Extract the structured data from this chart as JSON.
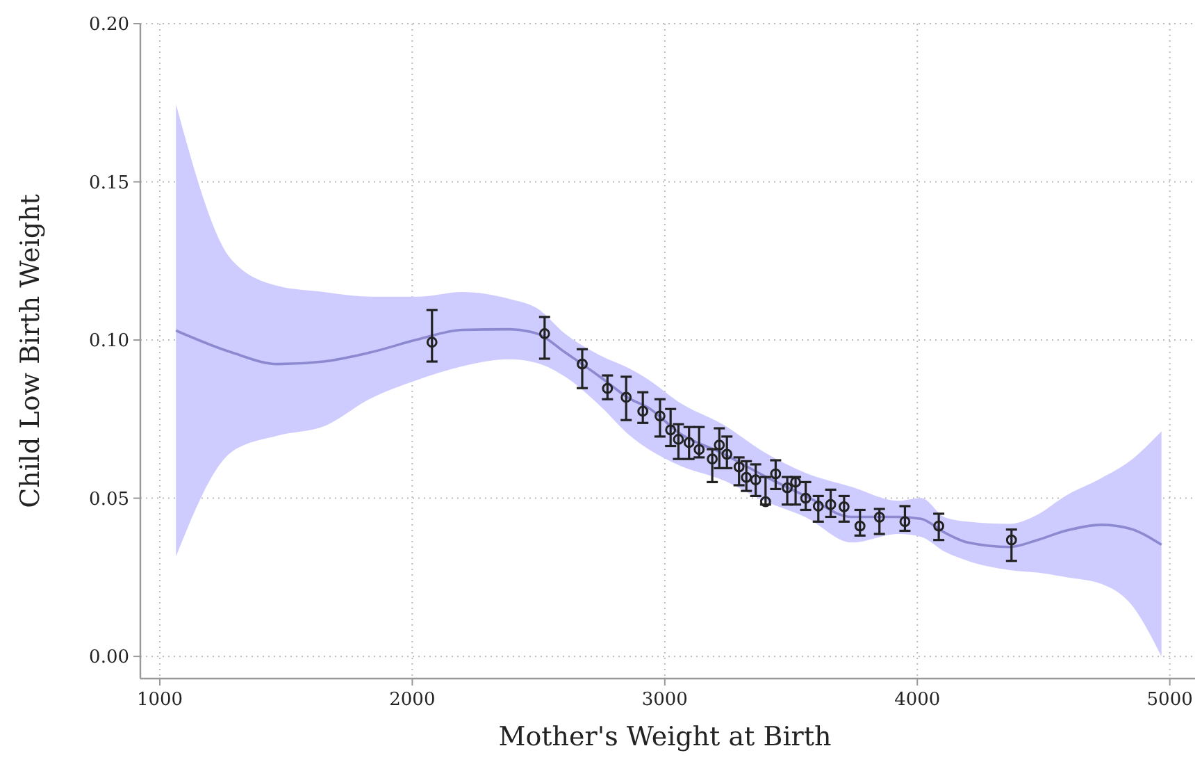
{
  "chart_data": {
    "type": "scatter",
    "xlabel": "Mother's Weight at Birth",
    "ylabel": "Child Low Birth Weight",
    "xlim": [
      923,
      5100
    ],
    "ylim": [
      -0.007,
      0.2
    ],
    "xticks": [
      1000,
      2000,
      3000,
      4000,
      5000
    ],
    "yticks": [
      {
        "value": 0,
        "label": "0.00"
      },
      {
        "value": 0.05,
        "label": "0.05"
      },
      {
        "value": 0.1,
        "label": "0.10"
      },
      {
        "value": 0.15,
        "label": "0.15"
      },
      {
        "value": 0.2,
        "label": "0.20"
      }
    ],
    "grid": true,
    "series": [
      {
        "type": "line",
        "color": "#8c89d0",
        "marker": "none",
        "line_style": "solid",
        "x": [
          1064,
          1284,
          1468,
          1649,
          1835,
          2018,
          2199,
          2385,
          2495,
          2605,
          2750,
          2860,
          2935,
          3063,
          3228,
          3393,
          3558,
          3740,
          3925,
          4015,
          4109,
          4200,
          4366,
          4476,
          4586,
          4730,
          4841,
          4967
        ],
        "values": [
          0.103,
          0.0961,
          0.0924,
          0.0932,
          0.0961,
          0.1001,
          0.1032,
          0.1034,
          0.102,
          0.0961,
          0.088,
          0.0815,
          0.0786,
          0.0703,
          0.0642,
          0.0571,
          0.0507,
          0.0441,
          0.0441,
          0.0435,
          0.0391,
          0.036,
          0.0346,
          0.0368,
          0.0397,
          0.0416,
          0.0404,
          0.0353
        ],
        "upper": [
          0.1745,
          0.1254,
          0.1171,
          0.1152,
          0.1137,
          0.1137,
          0.1152,
          0.113,
          0.11,
          0.102,
          0.0949,
          0.091,
          0.0875,
          0.08,
          0.0734,
          0.0646,
          0.058,
          0.0536,
          0.0492,
          0.0501,
          0.044,
          0.0426,
          0.0419,
          0.0448,
          0.0507,
          0.0564,
          0.0617,
          0.0712
        ],
        "lower": [
          0.0316,
          0.0646,
          0.0698,
          0.0727,
          0.0815,
          0.0873,
          0.0917,
          0.0939,
          0.0927,
          0.0884,
          0.0787,
          0.0699,
          0.0655,
          0.0602,
          0.0558,
          0.0492,
          0.044,
          0.036,
          0.0387,
          0.0378,
          0.0331,
          0.0302,
          0.0273,
          0.0265,
          0.0251,
          0.0229,
          0.017,
          0.0
        ]
      },
      {
        "color": "#222222",
        "marker": "circle",
        "x": [
          2078,
          2524,
          2673,
          2773,
          2847,
          2913,
          2981,
          3023,
          3054,
          3096,
          3136,
          3188,
          3216,
          3246,
          3294,
          3323,
          3360,
          3399,
          3439,
          3485,
          3518,
          3558,
          3608,
          3657,
          3710,
          3773,
          3850,
          3951,
          4085,
          4373
        ],
        "values": [
          0.0993,
          0.102,
          0.0924,
          0.0847,
          0.0819,
          0.0775,
          0.076,
          0.0716,
          0.0686,
          0.0676,
          0.0654,
          0.0624,
          0.0668,
          0.0639,
          0.0599,
          0.0566,
          0.0558,
          0.0489,
          0.0577,
          0.0533,
          0.0551,
          0.05,
          0.0475,
          0.048,
          0.0473,
          0.0412,
          0.044,
          0.0426,
          0.0412,
          0.0368
        ],
        "errors": [
          [
            0.0932,
            0.1095
          ],
          [
            0.0941,
            0.1073
          ],
          [
            0.0848,
            0.0971
          ],
          [
            0.0813,
            0.0888
          ],
          [
            0.0747,
            0.0884
          ],
          [
            0.0738,
            0.0835
          ],
          [
            0.0695,
            0.0813
          ],
          [
            0.0665,
            0.0782
          ],
          [
            0.0624,
            0.0734
          ],
          [
            0.0624,
            0.0725
          ],
          [
            0.0629,
            0.0725
          ],
          [
            0.0551,
            0.0655
          ],
          [
            0.0595,
            0.0721
          ],
          [
            0.0595,
            0.0695
          ],
          [
            0.0541,
            0.0629
          ],
          [
            0.0523,
            0.0617
          ],
          [
            0.0507,
            0.0607
          ],
          [
            0.048,
            0.0567
          ],
          [
            0.0529,
            0.062
          ],
          [
            0.048,
            0.0567
          ],
          [
            0.048,
            0.0567
          ],
          [
            0.0463,
            0.0551
          ],
          [
            0.0426,
            0.0507
          ],
          [
            0.0441,
            0.0527
          ],
          [
            0.0426,
            0.0507
          ],
          [
            0.0382,
            0.0463
          ],
          [
            0.0387,
            0.0466
          ],
          [
            0.0397,
            0.0475
          ],
          [
            0.0368,
            0.0451
          ],
          [
            0.0302,
            0.0401
          ]
        ]
      }
    ]
  }
}
